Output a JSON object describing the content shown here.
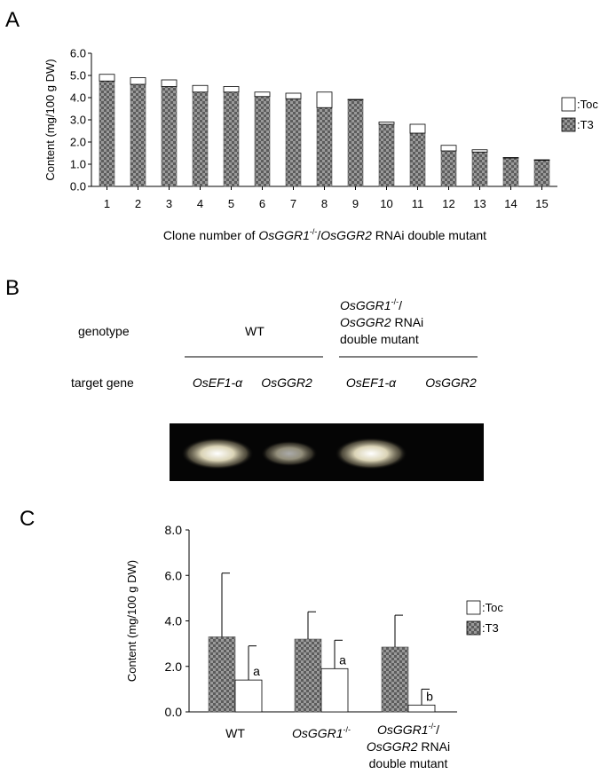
{
  "panels": {
    "a": {
      "letter": "A"
    },
    "b": {
      "letter": "B"
    },
    "c": {
      "letter": "C"
    }
  },
  "gel": {
    "row_genotype_label": "genotype",
    "row_target_label": "target gene",
    "wt_label": "WT",
    "mutant_label_line1_italic": "OsGGR1",
    "mutant_label_line1_sup": "-/-",
    "mutant_label_line1_rest": "/",
    "mutant_label_line2_italic": "OsGGR2",
    "mutant_label_line2_rest": " RNAi",
    "mutant_label_line3": "double mutant",
    "target_genes": [
      "OsEF1-α",
      "OsGGR2",
      "OsEF1-α",
      "OsGGR2"
    ],
    "band_intensity": [
      1.0,
      0.55,
      1.0,
      0.0
    ]
  },
  "chart_data": [
    {
      "type": "bar",
      "stacked": true,
      "ylabel": "Content (mg/100 g DW)",
      "xlabel_prefix": "Clone number of ",
      "xlabel_italic1": "OsGGR1",
      "xlabel_sup": "-/-",
      "xlabel_mid": "/",
      "xlabel_italic2": "OsGGR2",
      "xlabel_suffix": " RNAi double mutant",
      "ylim": [
        0,
        6
      ],
      "yticks": [
        "0.0",
        "1.0",
        "2.0",
        "3.0",
        "4.0",
        "5.0",
        "6.0"
      ],
      "categories": [
        "1",
        "2",
        "3",
        "4",
        "5",
        "6",
        "7",
        "8",
        "9",
        "10",
        "11",
        "12",
        "13",
        "14",
        "15"
      ],
      "series": [
        {
          "name": ":T3",
          "color": "#7a7a7a",
          "pattern": "checker",
          "values": [
            4.75,
            4.6,
            4.5,
            4.25,
            4.25,
            4.05,
            3.95,
            3.55,
            3.9,
            2.8,
            2.4,
            1.6,
            1.55,
            1.28,
            1.18
          ]
        },
        {
          "name": ":Toc",
          "color": "#ffffff",
          "values": [
            0.3,
            0.3,
            0.3,
            0.3,
            0.25,
            0.2,
            0.25,
            0.7,
            0.02,
            0.1,
            0.4,
            0.25,
            0.1,
            0.02,
            0.02
          ]
        }
      ],
      "legend": "right"
    },
    {
      "type": "bar",
      "grouped": true,
      "ylabel": "Content (mg/100 g DW)",
      "ylim": [
        0,
        8
      ],
      "yticks": [
        "0.0",
        "2.0",
        "4.0",
        "6.0",
        "8.0"
      ],
      "categories": [
        {
          "line1": "WT"
        },
        {
          "line1_italic": "OsGGR1",
          "line1_sup": "-/-"
        },
        {
          "line1_italic": "OsGGR1",
          "line1_sup": "-/-",
          "line1_rest": "/",
          "line2_italic": "OsGGR2",
          "line2_rest": " RNAi",
          "line3": "double mutant"
        }
      ],
      "series": [
        {
          "name": ":T3",
          "color": "#7a7a7a",
          "pattern": "checker",
          "values": [
            3.3,
            3.2,
            2.85
          ],
          "error": [
            2.8,
            1.2,
            1.4
          ]
        },
        {
          "name": ":Toc",
          "color": "#ffffff",
          "values": [
            1.4,
            1.9,
            0.3
          ],
          "error": [
            1.5,
            1.25,
            0.7
          ],
          "annotations": [
            "a",
            "a",
            "b"
          ]
        }
      ],
      "legend": "right"
    }
  ]
}
